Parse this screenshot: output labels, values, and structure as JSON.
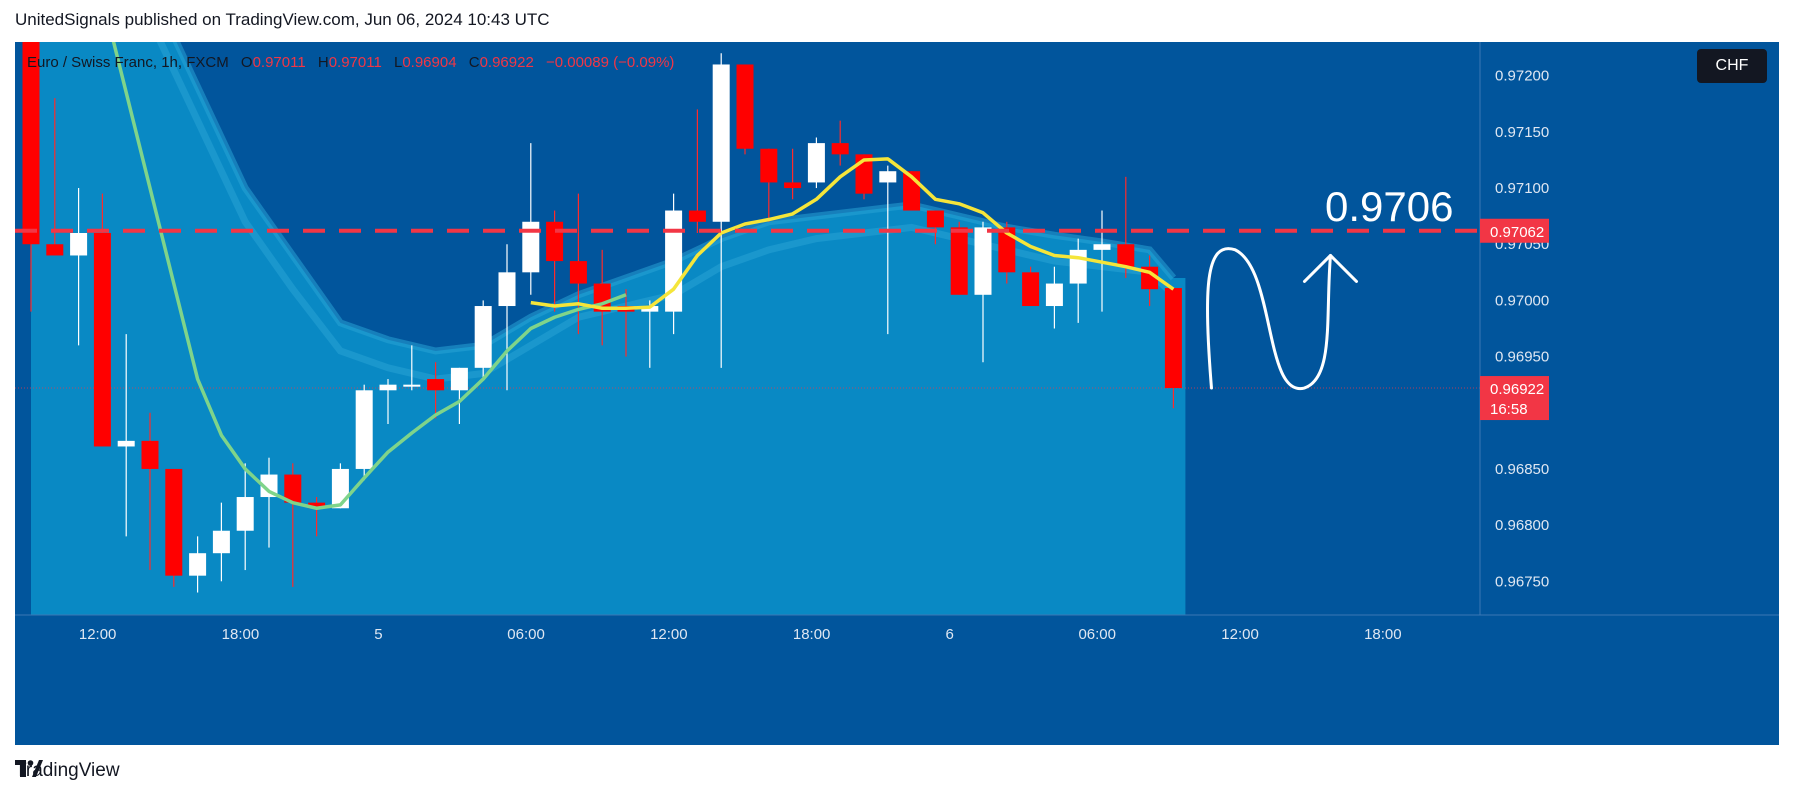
{
  "header": {
    "published_text": "UnitedSignals published on TradingView.com, Jun 06, 2024 10:43 UTC"
  },
  "legend": {
    "symbol": "Euro / Swiss Franc, 1h, FXCM",
    "o_label": "O",
    "o_value": "0.97011",
    "h_label": "H",
    "h_value": "0.97011",
    "l_label": "L",
    "l_value": "0.96904",
    "c_label": "C",
    "c_value": "0.96922",
    "change": "−0.00089 (−0.09%)"
  },
  "currency": "CHF",
  "target_annotation": "0.9706",
  "footer": {
    "brand": "TradingView"
  },
  "colors": {
    "background": "#01559c",
    "cloud": "#0a8cc6",
    "up_candle": "#ffffff",
    "down_candle": "#ff0000",
    "ma_fast": "#f5e53a",
    "ma_slow": "#7fd48a",
    "level_line": "#f23645",
    "current_price_bg": "#f23645"
  },
  "chart_data": {
    "type": "candlestick",
    "symbol": "EURCHF",
    "timeframe": "1h",
    "y_ticks": [
      "0.97200",
      "0.97150",
      "0.97100",
      "0.97050",
      "0.97000",
      "0.96950",
      "0.96850",
      "0.96800",
      "0.96750"
    ],
    "y_tick_values": [
      0.972,
      0.9715,
      0.971,
      0.9705,
      0.97,
      0.9695,
      0.9685,
      0.968,
      0.9675
    ],
    "x_ticks": [
      "12:00",
      "18:00",
      "5",
      "06:00",
      "12:00",
      "18:00",
      "6",
      "06:00",
      "12:00",
      "18:00"
    ],
    "ylim": [
      0.9672,
      0.9723
    ],
    "level_line": {
      "value": 0.97062,
      "label": "0.97062"
    },
    "current_price": {
      "value": 0.96922,
      "label": "0.96922",
      "countdown": "16:58"
    },
    "candles": [
      {
        "o": 0.9729,
        "h": 0.973,
        "l": 0.9699,
        "c": 0.9705
      },
      {
        "o": 0.9705,
        "h": 0.9718,
        "l": 0.9704,
        "c": 0.9704
      },
      {
        "o": 0.9704,
        "h": 0.971,
        "l": 0.9696,
        "c": 0.9706
      },
      {
        "o": 0.9706,
        "h": 0.97095,
        "l": 0.9687,
        "c": 0.9687
      },
      {
        "o": 0.9687,
        "h": 0.9697,
        "l": 0.9679,
        "c": 0.96875
      },
      {
        "o": 0.96875,
        "h": 0.969,
        "l": 0.9676,
        "c": 0.9685
      },
      {
        "o": 0.9685,
        "h": 0.9685,
        "l": 0.96745,
        "c": 0.96755
      },
      {
        "o": 0.96755,
        "h": 0.9679,
        "l": 0.9674,
        "c": 0.96775
      },
      {
        "o": 0.96775,
        "h": 0.9682,
        "l": 0.9675,
        "c": 0.96795
      },
      {
        "o": 0.96795,
        "h": 0.96855,
        "l": 0.9676,
        "c": 0.96825
      },
      {
        "o": 0.96825,
        "h": 0.9686,
        "l": 0.9678,
        "c": 0.96845
      },
      {
        "o": 0.96845,
        "h": 0.96855,
        "l": 0.96745,
        "c": 0.9682
      },
      {
        "o": 0.9682,
        "h": 0.96825,
        "l": 0.9679,
        "c": 0.96815
      },
      {
        "o": 0.96815,
        "h": 0.96855,
        "l": 0.96815,
        "c": 0.9685
      },
      {
        "o": 0.9685,
        "h": 0.96925,
        "l": 0.9684,
        "c": 0.9692
      },
      {
        "o": 0.9692,
        "h": 0.9693,
        "l": 0.9689,
        "c": 0.96925
      },
      {
        "o": 0.96925,
        "h": 0.9696,
        "l": 0.9692,
        "c": 0.96925
      },
      {
        "o": 0.9693,
        "h": 0.96945,
        "l": 0.96895,
        "c": 0.9692
      },
      {
        "o": 0.9692,
        "h": 0.9694,
        "l": 0.9689,
        "c": 0.9694
      },
      {
        "o": 0.9694,
        "h": 0.97,
        "l": 0.9693,
        "c": 0.96995
      },
      {
        "o": 0.96995,
        "h": 0.9705,
        "l": 0.9692,
        "c": 0.97025
      },
      {
        "o": 0.97025,
        "h": 0.9714,
        "l": 0.97005,
        "c": 0.9707
      },
      {
        "o": 0.9707,
        "h": 0.9708,
        "l": 0.9699,
        "c": 0.97035
      },
      {
        "o": 0.97035,
        "h": 0.97095,
        "l": 0.9697,
        "c": 0.97015
      },
      {
        "o": 0.97015,
        "h": 0.97045,
        "l": 0.9696,
        "c": 0.9699
      },
      {
        "o": 0.96995,
        "h": 0.9701,
        "l": 0.9695,
        "c": 0.9699
      },
      {
        "o": 0.9699,
        "h": 0.97,
        "l": 0.9694,
        "c": 0.96995
      },
      {
        "o": 0.9699,
        "h": 0.97095,
        "l": 0.9697,
        "c": 0.9708
      },
      {
        "o": 0.9708,
        "h": 0.9717,
        "l": 0.9706,
        "c": 0.9707
      },
      {
        "o": 0.9707,
        "h": 0.9722,
        "l": 0.9694,
        "c": 0.9721
      },
      {
        "o": 0.9721,
        "h": 0.9721,
        "l": 0.9713,
        "c": 0.97135
      },
      {
        "o": 0.97135,
        "h": 0.97135,
        "l": 0.9707,
        "c": 0.97105
      },
      {
        "o": 0.97105,
        "h": 0.97135,
        "l": 0.9709,
        "c": 0.971
      },
      {
        "o": 0.97105,
        "h": 0.97145,
        "l": 0.971,
        "c": 0.9714
      },
      {
        "o": 0.9714,
        "h": 0.9716,
        "l": 0.9712,
        "c": 0.9713
      },
      {
        "o": 0.9713,
        "h": 0.9713,
        "l": 0.9709,
        "c": 0.97095
      },
      {
        "o": 0.97105,
        "h": 0.9712,
        "l": 0.9697,
        "c": 0.97115
      },
      {
        "o": 0.97115,
        "h": 0.97115,
        "l": 0.9708,
        "c": 0.9708
      },
      {
        "o": 0.9708,
        "h": 0.9708,
        "l": 0.9705,
        "c": 0.97065
      },
      {
        "o": 0.97065,
        "h": 0.9707,
        "l": 0.97005,
        "c": 0.97005
      },
      {
        "o": 0.97005,
        "h": 0.9707,
        "l": 0.96945,
        "c": 0.97065
      },
      {
        "o": 0.97065,
        "h": 0.9707,
        "l": 0.97015,
        "c": 0.97025
      },
      {
        "o": 0.97025,
        "h": 0.9703,
        "l": 0.96995,
        "c": 0.96995
      },
      {
        "o": 0.96995,
        "h": 0.9703,
        "l": 0.96975,
        "c": 0.97015
      },
      {
        "o": 0.97015,
        "h": 0.97055,
        "l": 0.9698,
        "c": 0.97045
      },
      {
        "o": 0.97045,
        "h": 0.9708,
        "l": 0.9699,
        "c": 0.9705
      },
      {
        "o": 0.9705,
        "h": 0.9711,
        "l": 0.9702,
        "c": 0.9703
      },
      {
        "o": 0.9703,
        "h": 0.9704,
        "l": 0.96995,
        "c": 0.9701
      },
      {
        "o": 0.97011,
        "h": 0.97011,
        "l": 0.96904,
        "c": 0.96922
      }
    ],
    "ma_fast": [
      {
        "i": 21,
        "v": 0.96998
      },
      {
        "i": 22,
        "v": 0.96995
      },
      {
        "i": 23,
        "v": 0.96997
      },
      {
        "i": 24,
        "v": 0.96993
      },
      {
        "i": 25,
        "v": 0.96993
      },
      {
        "i": 26,
        "v": 0.96994
      },
      {
        "i": 27,
        "v": 0.9701
      },
      {
        "i": 28,
        "v": 0.9704
      },
      {
        "i": 29,
        "v": 0.9706
      },
      {
        "i": 30,
        "v": 0.97068
      },
      {
        "i": 31,
        "v": 0.97072
      },
      {
        "i": 32,
        "v": 0.97077
      },
      {
        "i": 33,
        "v": 0.9709
      },
      {
        "i": 34,
        "v": 0.9711
      },
      {
        "i": 35,
        "v": 0.97125
      },
      {
        "i": 36,
        "v": 0.97126
      },
      {
        "i": 37,
        "v": 0.9711
      },
      {
        "i": 38,
        "v": 0.9709
      },
      {
        "i": 39,
        "v": 0.97086
      },
      {
        "i": 40,
        "v": 0.97078
      },
      {
        "i": 41,
        "v": 0.9706
      },
      {
        "i": 42,
        "v": 0.97048
      },
      {
        "i": 43,
        "v": 0.9704
      },
      {
        "i": 44,
        "v": 0.97038
      },
      {
        "i": 45,
        "v": 0.97034
      },
      {
        "i": 46,
        "v": 0.9703
      },
      {
        "i": 47,
        "v": 0.97025
      },
      {
        "i": 48,
        "v": 0.9701
      }
    ],
    "ma_slow": [
      {
        "i": 3,
        "v": 0.9727
      },
      {
        "i": 5,
        "v": 0.971
      },
      {
        "i": 7,
        "v": 0.9693
      },
      {
        "i": 8,
        "v": 0.9688
      },
      {
        "i": 9,
        "v": 0.9685
      },
      {
        "i": 10,
        "v": 0.9683
      },
      {
        "i": 11,
        "v": 0.9682
      },
      {
        "i": 12,
        "v": 0.96815
      },
      {
        "i": 13,
        "v": 0.96818
      },
      {
        "i": 14,
        "v": 0.96842
      },
      {
        "i": 15,
        "v": 0.96865
      },
      {
        "i": 16,
        "v": 0.96882
      },
      {
        "i": 17,
        "v": 0.96898
      },
      {
        "i": 18,
        "v": 0.9691
      },
      {
        "i": 19,
        "v": 0.9693
      },
      {
        "i": 20,
        "v": 0.96955
      },
      {
        "i": 21,
        "v": 0.96975
      },
      {
        "i": 22,
        "v": 0.96985
      },
      {
        "i": 23,
        "v": 0.96992
      },
      {
        "i": 24,
        "v": 0.96997
      },
      {
        "i": 25,
        "v": 0.97005
      }
    ],
    "cloud_upper": [
      {
        "i": 0,
        "v": 0.9741
      },
      {
        "i": 3,
        "v": 0.9735
      },
      {
        "i": 5,
        "v": 0.9728
      },
      {
        "i": 7,
        "v": 0.9719
      },
      {
        "i": 9,
        "v": 0.971
      },
      {
        "i": 11,
        "v": 0.9704
      },
      {
        "i": 13,
        "v": 0.9698
      },
      {
        "i": 15,
        "v": 0.96965
      },
      {
        "i": 17,
        "v": 0.96955
      },
      {
        "i": 19,
        "v": 0.9696
      },
      {
        "i": 21,
        "v": 0.96985
      },
      {
        "i": 23,
        "v": 0.97005
      },
      {
        "i": 25,
        "v": 0.9702
      },
      {
        "i": 27,
        "v": 0.97035
      },
      {
        "i": 29,
        "v": 0.97055
      },
      {
        "i": 31,
        "v": 0.9707
      },
      {
        "i": 33,
        "v": 0.97075
      },
      {
        "i": 35,
        "v": 0.9708
      },
      {
        "i": 37,
        "v": 0.97085
      },
      {
        "i": 39,
        "v": 0.97075
      },
      {
        "i": 41,
        "v": 0.97065
      },
      {
        "i": 43,
        "v": 0.97058
      },
      {
        "i": 45,
        "v": 0.97052
      },
      {
        "i": 47,
        "v": 0.97045
      },
      {
        "i": 48,
        "v": 0.9702
      }
    ],
    "cloud_lower": [
      {
        "i": 0,
        "v": 0.9738
      },
      {
        "i": 3,
        "v": 0.9732
      },
      {
        "i": 5,
        "v": 0.9725
      },
      {
        "i": 7,
        "v": 0.9716
      },
      {
        "i": 9,
        "v": 0.9707
      },
      {
        "i": 11,
        "v": 0.9701
      },
      {
        "i": 13,
        "v": 0.96955
      },
      {
        "i": 15,
        "v": 0.9694
      },
      {
        "i": 17,
        "v": 0.9693
      },
      {
        "i": 19,
        "v": 0.96935
      },
      {
        "i": 21,
        "v": 0.9696
      },
      {
        "i": 23,
        "v": 0.96985
      },
      {
        "i": 25,
        "v": 0.96995
      },
      {
        "i": 27,
        "v": 0.97005
      },
      {
        "i": 29,
        "v": 0.9703
      },
      {
        "i": 31,
        "v": 0.97045
      },
      {
        "i": 33,
        "v": 0.97055
      },
      {
        "i": 35,
        "v": 0.9706
      },
      {
        "i": 37,
        "v": 0.97065
      },
      {
        "i": 39,
        "v": 0.97055
      },
      {
        "i": 41,
        "v": 0.97045
      },
      {
        "i": 43,
        "v": 0.97035
      },
      {
        "i": 45,
        "v": 0.9703
      },
      {
        "i": 47,
        "v": 0.97025
      },
      {
        "i": 48,
        "v": 0.97005
      }
    ],
    "projection_path": [
      {
        "i": 49.6,
        "v": 0.96922
      },
      {
        "i": 50.6,
        "v": 0.97045
      },
      {
        "i": 53.5,
        "v": 0.96922
      },
      {
        "i": 54.6,
        "v": 0.9704
      }
    ],
    "grid": false,
    "legend": "top-left"
  }
}
